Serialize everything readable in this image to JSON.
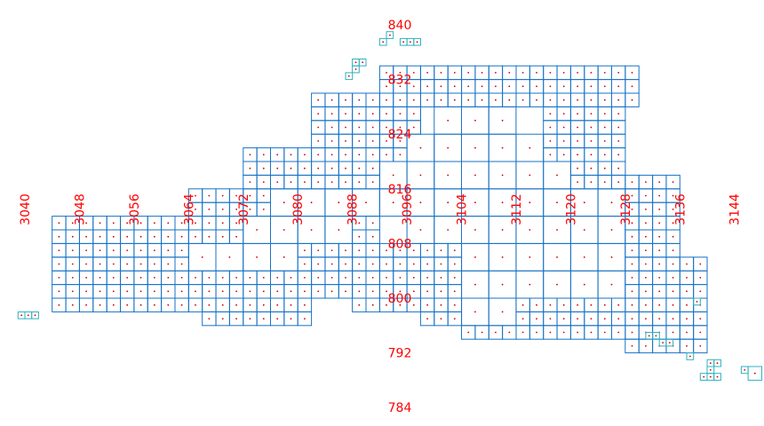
{
  "chart_data": {
    "type": "other",
    "description_free": true,
    "x_axis": {
      "tick_labels": [
        "3040",
        "3048",
        "3056",
        "3064",
        "3072",
        "3080",
        "3088",
        "3096",
        "3104",
        "3112",
        "3120",
        "3128",
        "3136",
        "3144"
      ],
      "range": [
        3036,
        3148
      ],
      "label_orientation": "vertical"
    },
    "y_axis": {
      "tick_labels": [
        "840",
        "832",
        "824",
        "816",
        "808",
        "800",
        "792",
        "784"
      ],
      "range": [
        780,
        844
      ]
    },
    "grid": false,
    "colors": {
      "tick_label": "#ff0000",
      "cell_large": "#1a72c4",
      "cell_small": "#2cb3c0",
      "cell_tiny": "#3cc9b0",
      "cell_center": "#cc0000"
    },
    "quadtree_cells": {
      "level_sizes": [
        4,
        2,
        1
      ],
      "large": [
        [
          3092,
          816
        ],
        [
          3096,
          816
        ],
        [
          3100,
          816
        ],
        [
          3104,
          816
        ],
        [
          3108,
          816
        ],
        [
          3112,
          816
        ],
        [
          3116,
          816
        ],
        [
          3096,
          820
        ],
        [
          3100,
          820
        ],
        [
          3104,
          820
        ],
        [
          3108,
          820
        ],
        [
          3112,
          820
        ],
        [
          3100,
          824
        ],
        [
          3104,
          824
        ],
        [
          3108,
          824
        ],
        [
          3072,
          808
        ],
        [
          3076,
          808
        ],
        [
          3080,
          808
        ],
        [
          3084,
          808
        ],
        [
          3064,
          804
        ],
        [
          3068,
          804
        ],
        [
          3072,
          804
        ],
        [
          3076,
          804
        ],
        [
          3104,
          808
        ],
        [
          3108,
          808
        ],
        [
          3112,
          808
        ],
        [
          3116,
          808
        ],
        [
          3120,
          808
        ],
        [
          3124,
          808
        ],
        [
          3104,
          812
        ],
        [
          3108,
          812
        ],
        [
          3112,
          812
        ],
        [
          3116,
          812
        ],
        [
          3120,
          812
        ],
        [
          3124,
          812
        ],
        [
          3104,
          804
        ],
        [
          3108,
          804
        ],
        [
          3112,
          804
        ],
        [
          3116,
          804
        ],
        [
          3120,
          804
        ],
        [
          3124,
          804
        ],
        [
          3104,
          800
        ],
        [
          3108,
          800
        ],
        [
          3112,
          800
        ],
        [
          3116,
          800
        ],
        [
          3120,
          800
        ],
        [
          3124,
          800
        ],
        [
          3104,
          796
        ],
        [
          3108,
          796
        ],
        [
          3088,
          812
        ],
        [
          3092,
          812
        ],
        [
          3096,
          812
        ],
        [
          3100,
          812
        ],
        [
          3084,
          812
        ],
        [
          3080,
          812
        ],
        [
          3076,
          812
        ],
        [
          3096,
          808
        ],
        [
          3100,
          808
        ]
      ],
      "small_regions": [
        {
          "x0": 3044,
          "x1": 3072,
          "y0": 798,
          "y1": 812
        },
        {
          "x0": 3064,
          "x1": 3092,
          "y0": 800,
          "y1": 816
        },
        {
          "x0": 3072,
          "x1": 3096,
          "y0": 814,
          "y1": 822
        },
        {
          "x0": 3082,
          "x1": 3098,
          "y0": 820,
          "y1": 830
        },
        {
          "x0": 3092,
          "x1": 3130,
          "y0": 828,
          "y1": 834
        },
        {
          "x0": 3116,
          "x1": 3128,
          "y0": 814,
          "y1": 830
        },
        {
          "x0": 3128,
          "x1": 3136,
          "y0": 804,
          "y1": 818
        },
        {
          "x0": 3098,
          "x1": 3104,
          "y0": 796,
          "y1": 812
        },
        {
          "x0": 3088,
          "x1": 3098,
          "y0": 798,
          "y1": 808
        },
        {
          "x0": 3104,
          "x1": 3136,
          "y0": 794,
          "y1": 800
        },
        {
          "x0": 3128,
          "x1": 3140,
          "y0": 792,
          "y1": 806
        },
        {
          "x0": 3066,
          "x1": 3082,
          "y0": 796,
          "y1": 802
        },
        {
          "x0": 3068,
          "x1": 3092,
          "y0": 800,
          "y1": 804
        }
      ],
      "tiny_islands": [
        [
          3039,
          797
        ],
        [
          3040,
          797
        ],
        [
          3041,
          797
        ],
        [
          3093,
          838
        ],
        [
          3092,
          837
        ],
        [
          3095,
          837
        ],
        [
          3096,
          837
        ],
        [
          3097,
          837
        ],
        [
          3088,
          834
        ],
        [
          3089,
          834
        ],
        [
          3088,
          833
        ],
        [
          3087,
          832
        ],
        [
          3137,
          791
        ],
        [
          3140,
          790
        ],
        [
          3141,
          790
        ],
        [
          3140,
          789
        ],
        [
          3140,
          788
        ],
        [
          3141,
          788
        ],
        [
          3139,
          788
        ],
        [
          3145,
          789
        ],
        [
          3133,
          793
        ],
        [
          3134,
          793
        ],
        [
          3131,
          794
        ],
        [
          3132,
          794
        ],
        [
          3138,
          799
        ]
      ],
      "tiny_large_island": [
        [
          3146,
          788
        ]
      ]
    }
  }
}
